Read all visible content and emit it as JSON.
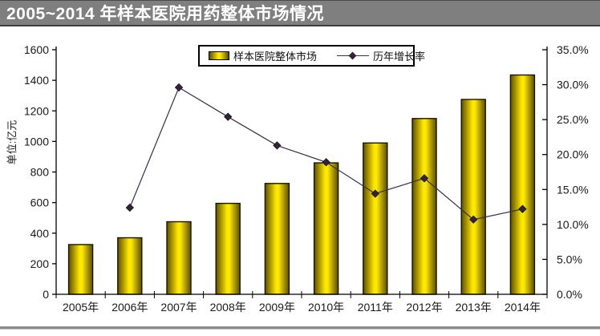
{
  "page": {
    "title": "2005~2014 年样本医院用药整体市场情况"
  },
  "colors": {
    "title_bar_bg": "#7f7f7f",
    "title_text": "#ffffff",
    "bar_gradient_edge": "#5c4f00",
    "bar_gradient_mid": "#8f7d00",
    "bar_gradient_center": "#ffe800",
    "bar_outline": "#161600",
    "line": "#33304a",
    "marker": "#342238",
    "axis": "#000000",
    "tick_label": "#1a1a1a",
    "divider_gray": "#8a8a8a"
  },
  "chart_data": {
    "type": "combo-bar-line",
    "title": "2005~2014 年样本医院用药整体市场情况",
    "categories": [
      "2005年",
      "2006年",
      "2007年",
      "2008年",
      "2009年",
      "2010年",
      "2011年",
      "2012年",
      "2013年",
      "2014年"
    ],
    "series": [
      {
        "name": "样本医院整体市场",
        "type": "bar",
        "axis": "left",
        "values": [
          325,
          370,
          475,
          595,
          725,
          860,
          990,
          1150,
          1275,
          1435
        ]
      },
      {
        "name": "历年增长率",
        "type": "line",
        "axis": "right",
        "values": [
          null,
          12.4,
          29.6,
          25.4,
          21.3,
          18.9,
          14.4,
          16.6,
          10.7,
          12.2
        ]
      }
    ],
    "left_axis": {
      "title": "单位:亿元",
      "min": 0,
      "max": 1600,
      "step": 200,
      "tick_labels": [
        "0",
        "200",
        "400",
        "600",
        "800",
        "1000",
        "1200",
        "1400",
        "1600"
      ]
    },
    "right_axis": {
      "min": 0,
      "max": 35,
      "step": 5,
      "tick_labels": [
        "0.0%",
        "5.0%",
        "10.0%",
        "15.0%",
        "20.0%",
        "25.0%",
        "30.0%",
        "35.0%"
      ]
    },
    "grid": false,
    "legend_position": "top-center"
  }
}
